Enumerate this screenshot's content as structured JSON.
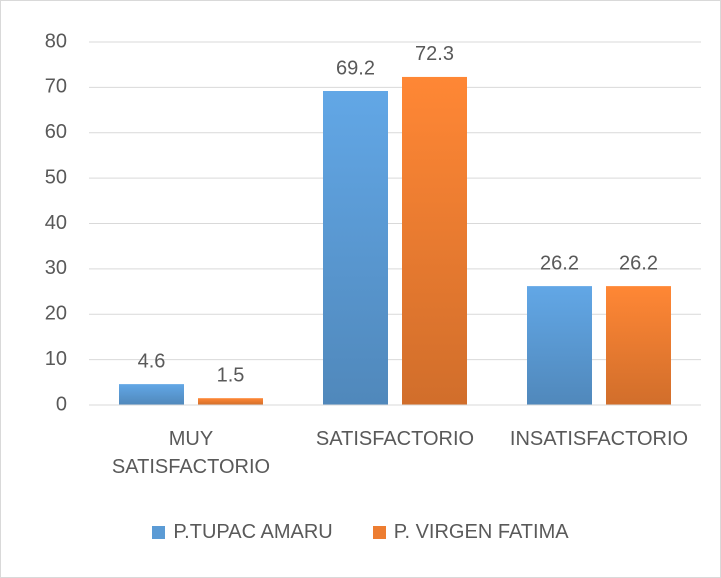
{
  "chart_data": {
    "type": "bar",
    "categories": [
      "MUY SATISFACTORIO",
      "SATISFACTORIO",
      "INSATISFACTORIO"
    ],
    "series": [
      {
        "name": "P.TUPAC AMARU",
        "color": "#5b9bd5",
        "values": [
          4.6,
          69.2,
          26.2
        ]
      },
      {
        "name": "P. VIRGEN FATIMA",
        "color": "#ed7d31",
        "values": [
          1.5,
          72.3,
          26.2
        ]
      }
    ],
    "ylim": [
      0,
      80
    ],
    "yticks": [
      0,
      10,
      20,
      30,
      40,
      50,
      60,
      70,
      80
    ],
    "grid": true,
    "legend": "bottom"
  }
}
